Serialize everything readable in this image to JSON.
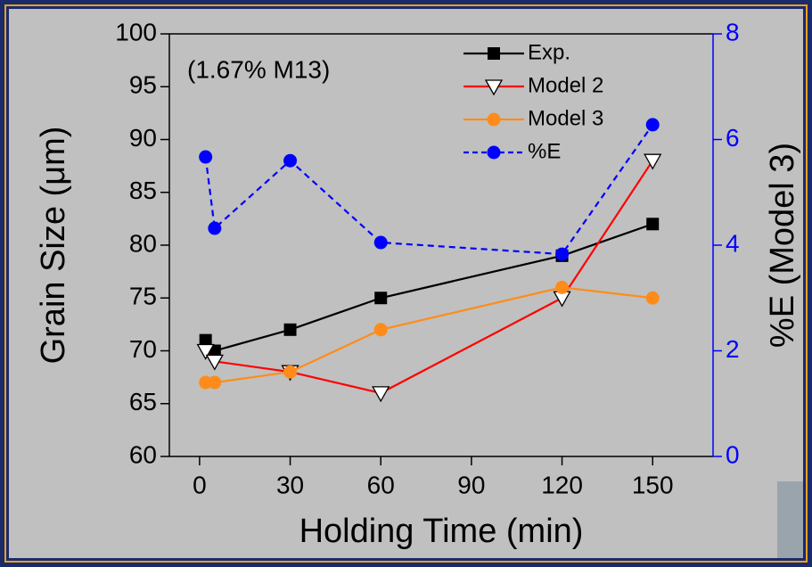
{
  "chart_data": {
    "type": "line",
    "annotation": "(1.67% M13)",
    "x_label": "Holding Time (min)",
    "y_label": "Grain Size (μm)",
    "y2_label": "%E (Model 3)",
    "xlim": [
      -10,
      170
    ],
    "xticks": [
      0,
      30,
      60,
      90,
      120,
      150
    ],
    "ylim": [
      60,
      100
    ],
    "yticks": [
      60,
      65,
      70,
      75,
      80,
      85,
      90,
      95,
      100
    ],
    "y2lim": [
      0,
      8
    ],
    "y2ticks": [
      0,
      2,
      4,
      6,
      8
    ],
    "y2color": "#0000ff",
    "legend": "upper right",
    "series": [
      {
        "name": "Exp.",
        "color": "#000000",
        "marker": "square",
        "dashed": false,
        "x": [
          2,
          5,
          30,
          60,
          120,
          150
        ],
        "values": [
          71,
          70,
          72,
          75,
          79,
          82
        ]
      },
      {
        "name": "Model 2",
        "color": "#ff0000",
        "marker": "triangle-down",
        "dashed": false,
        "x": [
          2,
          5,
          30,
          60,
          120,
          150
        ],
        "values": [
          70,
          69,
          68,
          66,
          75,
          88
        ]
      },
      {
        "name": "Model 3",
        "color": "#ff8c1a",
        "marker": "circle",
        "dashed": false,
        "x": [
          2,
          5,
          30,
          60,
          120,
          150
        ],
        "values": [
          67,
          67,
          68,
          72,
          76,
          75
        ]
      },
      {
        "name": "%E",
        "color": "#0000ff",
        "marker": "circle",
        "dashed": true,
        "axis": "y2",
        "x": [
          2,
          5,
          30,
          60,
          120,
          150
        ],
        "values": [
          5.67,
          4.32,
          5.6,
          4.05,
          3.83,
          6.28
        ]
      }
    ]
  }
}
